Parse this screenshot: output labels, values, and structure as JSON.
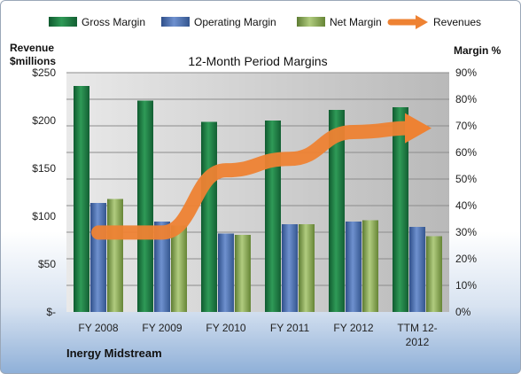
{
  "chart_data": {
    "type": "bar",
    "title": "12-Month Period Margins",
    "company": "Inergy Midstream",
    "left_axis_label_lines": [
      "Revenue",
      "$millions"
    ],
    "right_axis_label": "Margin %",
    "categories": [
      [
        "FY 2008"
      ],
      [
        "FY 2009"
      ],
      [
        "FY 2010"
      ],
      [
        "FY 2011"
      ],
      [
        "FY 2012"
      ],
      [
        "TTM 12-",
        "2012"
      ]
    ],
    "left_ticks": [
      "$-",
      "$50",
      "$100",
      "$150",
      "$200",
      "$250"
    ],
    "right_ticks": [
      "0%",
      "10%",
      "20%",
      "30%",
      "40%",
      "50%",
      "60%",
      "70%",
      "80%",
      "90%"
    ],
    "left_ylim": [
      0,
      250
    ],
    "right_ylim": [
      0,
      90
    ],
    "grid": true,
    "legend_position": "top",
    "series": [
      {
        "name": "Gross Margin",
        "axis": "right",
        "color": "#1e7a44",
        "values": [
          85,
          79.5,
          71.5,
          72,
          76,
          77
        ]
      },
      {
        "name": "Operating Margin",
        "axis": "right",
        "color": "#4a70b4",
        "values": [
          41,
          34,
          29.5,
          33,
          34,
          32
        ]
      },
      {
        "name": "Net Margin",
        "axis": "right",
        "color": "#8fb15a",
        "values": [
          42.5,
          32.5,
          29,
          33,
          34.5,
          28.5
        ]
      },
      {
        "name": "Revenues",
        "axis": "left",
        "type": "line",
        "color": "#ee8233",
        "values": [
          83,
          83,
          148,
          160,
          188,
          192
        ]
      }
    ]
  }
}
